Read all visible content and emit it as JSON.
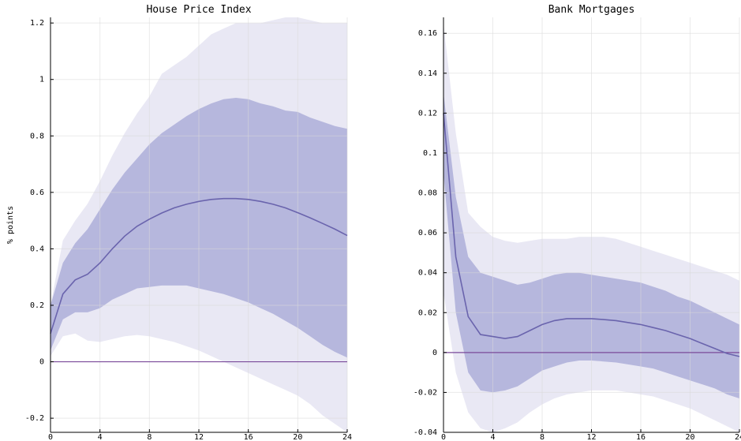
{
  "chart_data": [
    {
      "type": "area",
      "title": "House Price Index",
      "xlabel": "",
      "ylabel": "% points",
      "xlim": [
        0,
        24
      ],
      "ylim": [
        -0.25,
        1.22
      ],
      "xticks": [
        0,
        4,
        8,
        12,
        16,
        20,
        24
      ],
      "xtick_labels": [
        "0",
        "4",
        "8",
        "12",
        "16",
        "20",
        "24"
      ],
      "yticks": [
        -0.2,
        0,
        0.2,
        0.4,
        0.6,
        0.8,
        1,
        1.2
      ],
      "ytick_labels": [
        "-0.2",
        "0",
        "0.2",
        "0.4",
        "0.6",
        "0.8",
        "1",
        "1.2"
      ],
      "grid": true,
      "x": [
        0,
        1,
        2,
        3,
        4,
        5,
        6,
        7,
        8,
        9,
        10,
        11,
        12,
        13,
        14,
        15,
        16,
        17,
        18,
        19,
        20,
        21,
        22,
        23,
        24
      ],
      "median": [
        0.1,
        0.24,
        0.29,
        0.31,
        0.35,
        0.4,
        0.445,
        0.48,
        0.505,
        0.527,
        0.545,
        0.558,
        0.568,
        0.575,
        0.578,
        0.578,
        0.575,
        0.568,
        0.558,
        0.545,
        0.528,
        0.51,
        0.49,
        0.47,
        0.447
      ],
      "inner_upper": [
        0.2,
        0.35,
        0.42,
        0.47,
        0.54,
        0.61,
        0.67,
        0.72,
        0.77,
        0.81,
        0.84,
        0.87,
        0.895,
        0.915,
        0.93,
        0.935,
        0.93,
        0.915,
        0.905,
        0.89,
        0.885,
        0.865,
        0.85,
        0.835,
        0.825
      ],
      "inner_lower": [
        0.04,
        0.15,
        0.175,
        0.175,
        0.19,
        0.22,
        0.24,
        0.26,
        0.265,
        0.27,
        0.27,
        0.27,
        0.26,
        0.25,
        0.24,
        0.225,
        0.21,
        0.19,
        0.17,
        0.145,
        0.12,
        0.09,
        0.06,
        0.035,
        0.015
      ],
      "outer_upper": [
        0.2,
        0.43,
        0.5,
        0.56,
        0.64,
        0.73,
        0.81,
        0.88,
        0.94,
        1.02,
        1.05,
        1.08,
        1.12,
        1.16,
        1.18,
        1.2,
        1.2,
        1.2,
        1.21,
        1.22,
        1.22,
        1.21,
        1.2,
        1.2,
        1.2
      ],
      "outer_lower": [
        0.02,
        0.09,
        0.1,
        0.075,
        0.07,
        0.08,
        0.09,
        0.095,
        0.09,
        0.08,
        0.07,
        0.055,
        0.04,
        0.02,
        0.0,
        -0.02,
        -0.04,
        -0.06,
        -0.08,
        -0.1,
        -0.12,
        -0.15,
        -0.19,
        -0.22,
        -0.25
      ],
      "zero_line": 0
    },
    {
      "type": "area",
      "title": "Bank Mortgages",
      "xlabel": "",
      "ylabel": "",
      "xlim": [
        0,
        24
      ],
      "ylim": [
        -0.04,
        0.168
      ],
      "xticks": [
        0,
        4,
        8,
        12,
        16,
        20,
        24
      ],
      "xtick_labels": [
        "0",
        "4",
        "8",
        "12",
        "16",
        "20",
        "24"
      ],
      "yticks": [
        -0.04,
        -0.02,
        0,
        0.02,
        0.04,
        0.06,
        0.08,
        0.1,
        0.12,
        0.14,
        0.16
      ],
      "ytick_labels": [
        "-0.04",
        "-0.02",
        "0",
        "0.02",
        "0.04",
        "0.06",
        "0.08",
        "0.1",
        "0.12",
        "0.14",
        "0.16"
      ],
      "grid": true,
      "x": [
        0,
        1,
        2,
        3,
        4,
        5,
        6,
        7,
        8,
        9,
        10,
        11,
        12,
        13,
        14,
        15,
        16,
        17,
        18,
        19,
        20,
        21,
        22,
        23,
        24
      ],
      "median": [
        0.12,
        0.048,
        0.018,
        0.009,
        0.008,
        0.007,
        0.008,
        0.011,
        0.014,
        0.016,
        0.017,
        0.017,
        0.017,
        0.0165,
        0.016,
        0.015,
        0.014,
        0.0125,
        0.011,
        0.009,
        0.007,
        0.0045,
        0.002,
        -0.0005,
        -0.002
      ],
      "inner_upper": [
        0.13,
        0.078,
        0.048,
        0.04,
        0.038,
        0.036,
        0.034,
        0.035,
        0.037,
        0.039,
        0.04,
        0.04,
        0.039,
        0.038,
        0.037,
        0.036,
        0.035,
        0.033,
        0.031,
        0.028,
        0.026,
        0.023,
        0.02,
        0.017,
        0.014
      ],
      "inner_lower": [
        0.09,
        0.02,
        -0.01,
        -0.019,
        -0.02,
        -0.019,
        -0.017,
        -0.013,
        -0.009,
        -0.007,
        -0.005,
        -0.004,
        -0.004,
        -0.0045,
        -0.005,
        -0.006,
        -0.007,
        -0.008,
        -0.01,
        -0.012,
        -0.014,
        -0.016,
        -0.018,
        -0.021,
        -0.023
      ],
      "outer_upper": [
        0.165,
        0.11,
        0.07,
        0.063,
        0.058,
        0.056,
        0.055,
        0.056,
        0.057,
        0.057,
        0.057,
        0.058,
        0.058,
        0.058,
        0.057,
        0.055,
        0.053,
        0.051,
        0.049,
        0.047,
        0.045,
        0.043,
        0.041,
        0.039,
        0.036
      ],
      "outer_lower": [
        0.03,
        -0.01,
        -0.03,
        -0.038,
        -0.04,
        -0.038,
        -0.035,
        -0.03,
        -0.026,
        -0.023,
        -0.021,
        -0.02,
        -0.019,
        -0.019,
        -0.019,
        -0.02,
        -0.021,
        -0.022,
        -0.024,
        -0.026,
        -0.028,
        -0.031,
        -0.034,
        -0.037,
        -0.04
      ],
      "zero_line": 0
    }
  ]
}
